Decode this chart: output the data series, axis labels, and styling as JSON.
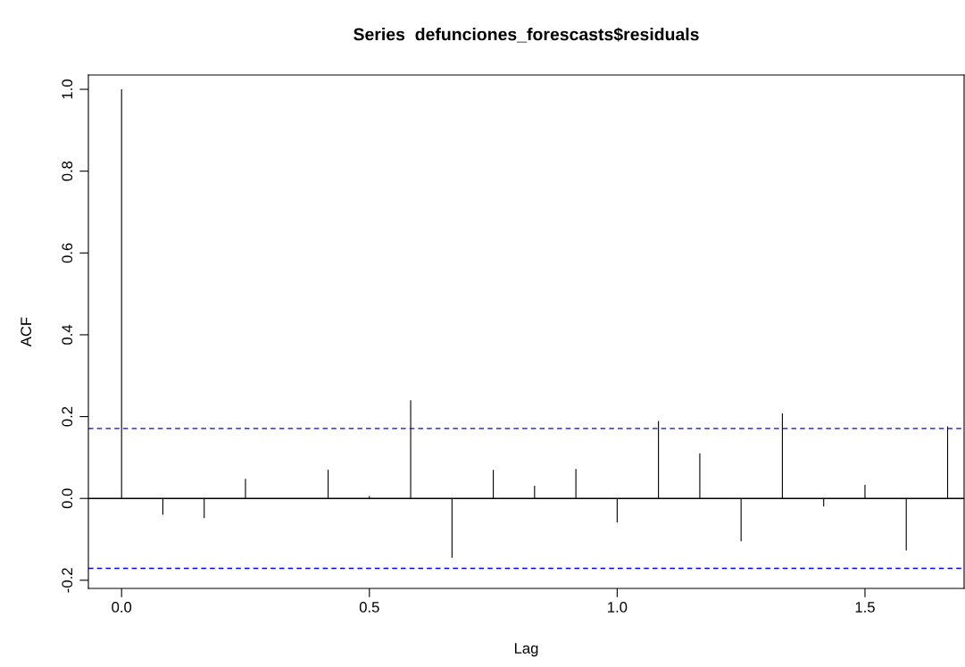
{
  "chart_data": {
    "type": "bar",
    "title": "Series  defunciones_forescasts$residuals",
    "xlabel": "Lag",
    "ylabel": "ACF",
    "x": [
      0,
      0.0833,
      0.1667,
      0.25,
      0.3333,
      0.4167,
      0.5,
      0.5833,
      0.6667,
      0.75,
      0.8333,
      0.9167,
      1.0,
      1.0833,
      1.1667,
      1.25,
      1.3333,
      1.4167,
      1.5,
      1.5833,
      1.6667
    ],
    "values": [
      1.0,
      -0.04,
      -0.048,
      0.048,
      0.0,
      0.07,
      0.006,
      0.24,
      -0.145,
      0.07,
      0.031,
      0.072,
      -0.059,
      0.189,
      0.11,
      -0.105,
      0.208,
      -0.02,
      0.033,
      -0.127,
      0.176
    ],
    "color": "#000000",
    "xlim": [
      -0.067,
      1.7
    ],
    "ylim": [
      -0.22,
      1.035
    ],
    "xticks": [
      {
        "value": 0,
        "label": "0.0"
      },
      {
        "value": 0.5,
        "label": "0.5"
      },
      {
        "value": 1,
        "label": "1.0"
      },
      {
        "value": 1.5,
        "label": "1.5"
      }
    ],
    "yticks": [
      {
        "value": -0.2,
        "label": "-0.2"
      },
      {
        "value": 0,
        "label": "0.0"
      },
      {
        "value": 0.2,
        "label": "0.2"
      },
      {
        "value": 0.4,
        "label": "0.4"
      },
      {
        "value": 0.6,
        "label": "0.6"
      },
      {
        "value": 0.8,
        "label": "0.8"
      },
      {
        "value": 1,
        "label": "1.0"
      }
    ],
    "ref_lines": [
      {
        "axis": "y",
        "value": 0,
        "color": "#000000",
        "line_style": "solid"
      },
      {
        "axis": "y",
        "value": 0.171,
        "color": "#0000ff",
        "line_style": "dashed"
      },
      {
        "axis": "y",
        "value": -0.171,
        "color": "#0000ff",
        "line_style": "dashed"
      }
    ],
    "grid": false
  }
}
